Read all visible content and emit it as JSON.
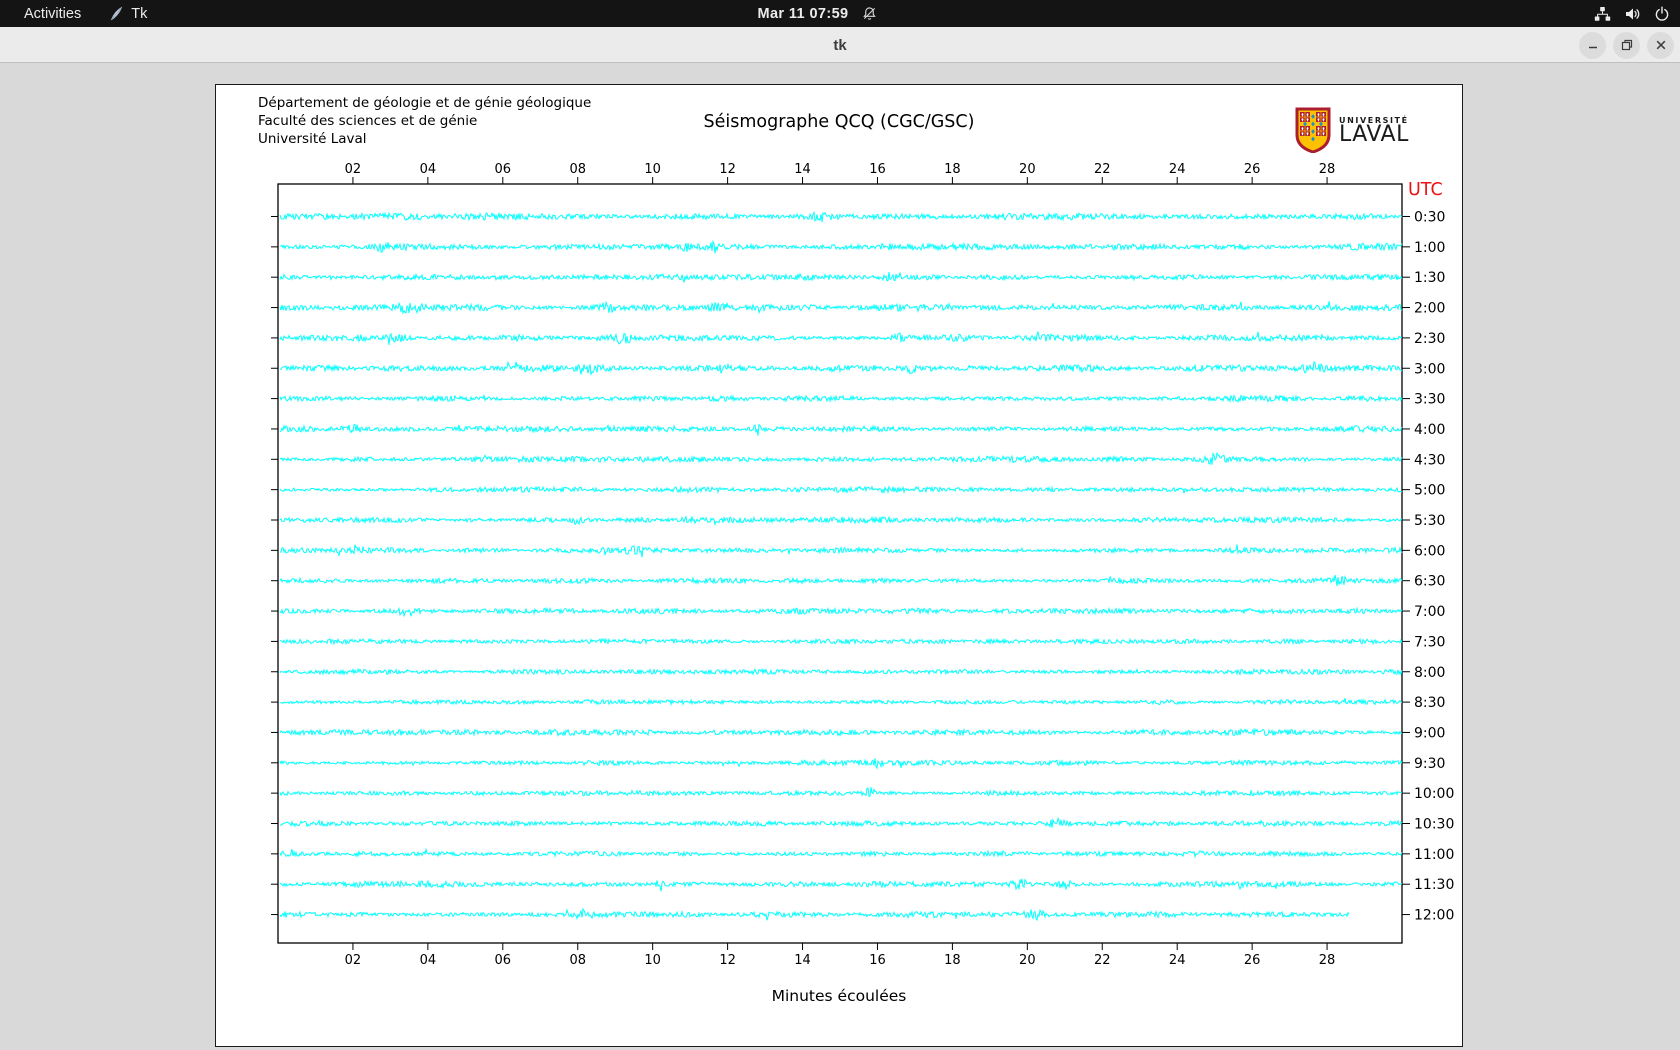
{
  "topbar": {
    "activities_label": "Activities",
    "app_label": "Tk",
    "clock": "Mar 11 07:59",
    "icons": [
      "tk-feather-icon",
      "notifications-muted-icon",
      "network-icon",
      "volume-icon",
      "power-icon"
    ]
  },
  "window": {
    "title": "tk",
    "controls": [
      "minimize",
      "restore",
      "close"
    ]
  },
  "header": {
    "institution_lines": [
      "Département de géologie et de génie géologique",
      "Faculté des sciences et de génie",
      "Université Laval"
    ],
    "title": "Séismographe QCQ (CGC/GSC)",
    "logo_top": "UNIVERSITÉ",
    "logo_bottom": "LAVAL"
  },
  "footer": {
    "xlabel": "Minutes écoulées"
  },
  "colors": {
    "trace": "#00ffff",
    "utc_label": "#ee1111",
    "topbar_bg": "#141414",
    "titlebar_bg": "#ebebeb",
    "root_bg": "#d9d9d9",
    "canvas_bg": "#ffffff",
    "logo_gold": "#ffc103",
    "logo_red": "#ab1e2d",
    "logo_blue": "#1f8fcb"
  },
  "chart_data": {
    "type": "line",
    "title": "Séismographe QCQ (CGC/GSC)",
    "xlabel": "Minutes écoulées",
    "right_axis_label": "UTC",
    "x_ticks": [
      "02",
      "04",
      "06",
      "08",
      "10",
      "12",
      "14",
      "16",
      "18",
      "20",
      "22",
      "24",
      "26",
      "28"
    ],
    "x_range_minutes": [
      0,
      30
    ],
    "row_duration_minutes": 30,
    "grid": false,
    "trace_color": "#00ffff",
    "note": "24 half-hour helicorder rows of broadband noise; amp = relative noise amplitude, events = [minute, spike_px, width_px]",
    "rows": [
      {
        "label": "0:30",
        "amp": 1.15,
        "events": [
          [
            14.5,
            3,
            6
          ]
        ]
      },
      {
        "label": "1:00",
        "amp": 1.1,
        "events": [
          [
            2.8,
            3,
            5
          ],
          [
            10.9,
            9,
            2.2
          ],
          [
            11.6,
            7,
            2.2
          ],
          [
            16.2,
            3,
            4
          ]
        ]
      },
      {
        "label": "1:30",
        "amp": 1.0,
        "events": [
          [
            16.3,
            3.5,
            5
          ]
        ]
      },
      {
        "label": "2:00",
        "amp": 1.1,
        "events": [
          [
            3.5,
            3.5,
            8
          ],
          [
            8.8,
            3.5,
            6
          ],
          [
            11.8,
            3.5,
            6
          ]
        ]
      },
      {
        "label": "2:30",
        "amp": 1.1,
        "events": [
          [
            3.2,
            3.5,
            7
          ],
          [
            9.2,
            4.5,
            6
          ],
          [
            16.6,
            3.5,
            5
          ]
        ]
      },
      {
        "label": "3:00",
        "amp": 1.1,
        "events": [
          [
            8.2,
            4,
            7
          ],
          [
            11.9,
            6,
            2
          ],
          [
            16.9,
            3.5,
            5
          ],
          [
            27.6,
            3.5,
            6
          ]
        ]
      },
      {
        "label": "3:30",
        "amp": 0.95,
        "events": []
      },
      {
        "label": "4:00",
        "amp": 1.0,
        "events": [
          [
            2.0,
            3.5,
            6
          ],
          [
            8.8,
            3,
            5
          ],
          [
            12.8,
            6,
            2
          ]
        ]
      },
      {
        "label": "4:30",
        "amp": 0.95,
        "events": [
          [
            25.0,
            4,
            7
          ]
        ]
      },
      {
        "label": "5:00",
        "amp": 0.9,
        "events": []
      },
      {
        "label": "5:30",
        "amp": 0.9,
        "events": [
          [
            8.0,
            3.5,
            6
          ],
          [
            11.0,
            3.5,
            5
          ]
        ]
      },
      {
        "label": "6:00",
        "amp": 0.9,
        "events": [
          [
            9.5,
            3,
            5
          ]
        ]
      },
      {
        "label": "6:30",
        "amp": 0.9,
        "events": [
          [
            28.3,
            4,
            5
          ]
        ]
      },
      {
        "label": "7:00",
        "amp": 1.0,
        "events": [
          [
            3.5,
            3.5,
            6
          ]
        ]
      },
      {
        "label": "7:30",
        "amp": 0.8,
        "events": []
      },
      {
        "label": "8:00",
        "amp": 0.8,
        "events": []
      },
      {
        "label": "8:30",
        "amp": 0.8,
        "events": []
      },
      {
        "label": "9:00",
        "amp": 0.95,
        "events": []
      },
      {
        "label": "9:30",
        "amp": 0.85,
        "events": [
          [
            16.0,
            5,
            2
          ]
        ]
      },
      {
        "label": "10:00",
        "amp": 0.85,
        "events": [
          [
            15.8,
            4.5,
            3
          ]
        ]
      },
      {
        "label": "10:30",
        "amp": 0.9,
        "events": [
          [
            20.8,
            4,
            5
          ]
        ]
      },
      {
        "label": "11:00",
        "amp": 0.9,
        "events": []
      },
      {
        "label": "11:30",
        "amp": 1.0,
        "events": [
          [
            10.2,
            6,
            2
          ],
          [
            19.8,
            4,
            6
          ],
          [
            21.0,
            4,
            5
          ]
        ]
      },
      {
        "label": "12:00",
        "amp": 1.0,
        "end_minute": 28.6,
        "events": [
          [
            8.2,
            4,
            6
          ],
          [
            20.2,
            4,
            6
          ]
        ]
      }
    ]
  }
}
